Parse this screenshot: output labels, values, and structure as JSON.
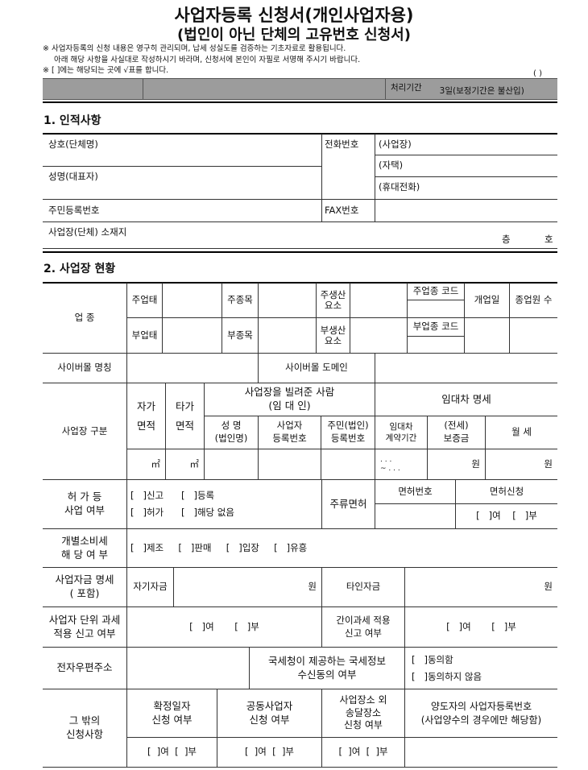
{
  "header": {
    "title": "사업자등록 신청서(개인사업자용)",
    "subtitle": "(법인이 아닌 단체의 고유번호 신청서)",
    "note1": "※ 사업자등록의 신청 내용은 영구히 관리되며, 납세 성실도를 검증하는 기초자료로 활용됩니다.",
    "note2": "아래 해당 사항을 사실대로 작성하시기 바라며, 신청서에 본인이 자필로 서명해 주시기 바랍니다.",
    "note3": "※ [   ]에는 해당되는 곳에 √표를 합니다.",
    "page_mark": "(     )",
    "processing_label": "처리기간",
    "processing_value": "3일(보정기간은 불산입)"
  },
  "section1": {
    "heading": "1. 인적사항",
    "trade_name": "상호(단체명)",
    "name": "성명(대표자)",
    "resident_no": "주민등록번호",
    "phone_label": "전화번호",
    "phone_business": "(사업장)",
    "phone_home": "(자택)",
    "phone_mobile": "(휴대전화)",
    "fax_label": "FAX번호",
    "address_label": "사업장(단체) 소재지",
    "floor": "층",
    "unit": "호"
  },
  "section2": {
    "heading": "2. 사업장 현황",
    "industry_label": "업 종",
    "main_type": "주업태",
    "main_item": "주종목",
    "main_factor": "주생산\n요소",
    "main_code": "주업종 코드",
    "open_date": "개업일",
    "employees": "종업원 수",
    "sub_type": "부업태",
    "sub_item": "부종목",
    "sub_factor": "부생산\n요소",
    "sub_code": "부업종 코드",
    "cybermall_name": "사이버몰 명칭",
    "cybermall_domain": "사이버몰 도메인",
    "premises_label": "사업장 구분",
    "own_area": "자가\n면적",
    "other_area": "타가\n면적",
    "lessor": "사업장을 빌려준 사람\n(임 대 인)",
    "lease_details": "임대차 명세",
    "lessor_name": "성 명\n(법인명)",
    "lessor_bizno": "사업자\n등록번호",
    "lessor_resno": "주민(법인)\n등록번호",
    "lease_period": "임대차\n계약기간",
    "deposit": "(전세)\n보증금",
    "monthly_rent": "월 세",
    "sqm": "㎡",
    "period_placeholder": ". . .\n~   . . .",
    "won": "원",
    "permit_label": "허 가   등\n사업 여부",
    "permit_opt1": "[   ]신고      [   ]등록",
    "permit_opt2": "[   ]허가      [   ]해당 없음",
    "liquor_label": "주류면허",
    "license_no": "면허번호",
    "license_apply": "면허신청",
    "yes_no": "[   ]여    [   ]부",
    "excise_label": "개별소비세\n해 당  여 부",
    "excise_opts": "[   ]제조     [   ]판매     [   ]입장     [   ]유흥",
    "funds_label": "사업자금 명세\n(                포함)",
    "own_funds": "자기자금",
    "other_funds": "타인자금",
    "unit_tax_label": "사업자 단위 과세\n적용 신고 여부",
    "unit_tax_opts": "[   ]여       [   ]부",
    "simple_tax_label": "간이과세 적용\n신고 여부",
    "simple_tax_opts": "[   ]여       [   ]부",
    "email_label": "전자우편주소",
    "nts_consent_label": "국세청이 제공하는 국세정보\n수신동의 여부",
    "consent_yes": "[   ]동의함",
    "consent_no": "[   ]동의하지 않음",
    "other_label": "그 밖의\n신청사항",
    "fixed_date": "확정일자\n신청 여부",
    "joint_biz": "공동사업자\n신청 여부",
    "delivery_place": "사업장소 외\n송달장소\n신청 여부",
    "transferor_no": "양도자의 사업자등록번호\n(사업양수의 경우에만 해당함)",
    "yn_short": "[  ]여  [  ]부"
  }
}
